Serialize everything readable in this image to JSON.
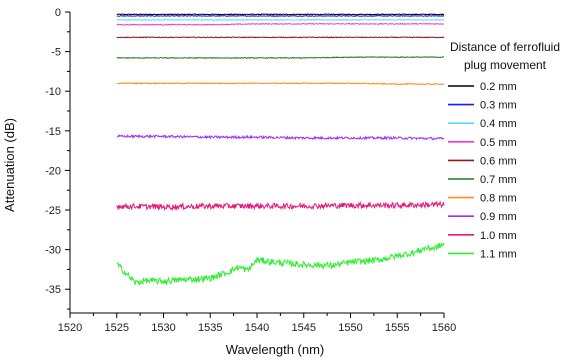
{
  "chart_data": {
    "type": "line",
    "xlabel": "Wavelength (nm)",
    "ylabel": "Attenuation (dB)",
    "xlim": [
      1520,
      1560
    ],
    "ylim": [
      -38,
      0
    ],
    "xticks": [
      "1520",
      "1525",
      "1530",
      "1535",
      "1540",
      "1545",
      "1550",
      "1555",
      "1560"
    ],
    "yticks": [
      "0",
      "-5",
      "-10",
      "-15",
      "-20",
      "-25",
      "-30",
      "-35"
    ],
    "legend": {
      "title_lines": [
        "Distance of ferrofluid",
        "plug movement"
      ],
      "placement": "right"
    },
    "grid": false,
    "series": [
      {
        "name": "0.2 mm",
        "color": "#000000",
        "noise": 0.05,
        "x": [
          1525,
          1530,
          1535,
          1540,
          1545,
          1550,
          1555,
          1560
        ],
        "y": [
          -0.3,
          -0.3,
          -0.3,
          -0.3,
          -0.3,
          -0.3,
          -0.3,
          -0.3
        ]
      },
      {
        "name": "0.3 mm",
        "color": "#1a1aff",
        "noise": 0.05,
        "x": [
          1525,
          1530,
          1535,
          1540,
          1545,
          1550,
          1555,
          1560
        ],
        "y": [
          -0.5,
          -0.5,
          -0.5,
          -0.5,
          -0.5,
          -0.5,
          -0.5,
          -0.5
        ]
      },
      {
        "name": "0.4 mm",
        "color": "#55dfff",
        "noise": 0.05,
        "x": [
          1525,
          1530,
          1535,
          1540,
          1545,
          1550,
          1555,
          1560
        ],
        "y": [
          -1.0,
          -1.0,
          -1.0,
          -1.0,
          -1.0,
          -1.0,
          -1.0,
          -1.0
        ]
      },
      {
        "name": "0.5 mm",
        "color": "#ff33cc",
        "noise": 0.05,
        "x": [
          1525,
          1530,
          1535,
          1540,
          1545,
          1550,
          1555,
          1560
        ],
        "y": [
          -1.6,
          -1.6,
          -1.6,
          -1.5,
          -1.5,
          -1.5,
          -1.5,
          -1.5
        ]
      },
      {
        "name": "0.6 mm",
        "color": "#8b1a1a",
        "noise": 0.05,
        "x": [
          1525,
          1530,
          1535,
          1540,
          1545,
          1550,
          1555,
          1560
        ],
        "y": [
          -3.2,
          -3.2,
          -3.2,
          -3.2,
          -3.2,
          -3.2,
          -3.2,
          -3.2
        ]
      },
      {
        "name": "0.7 mm",
        "color": "#1e7a1e",
        "noise": 0.05,
        "x": [
          1525,
          1530,
          1535,
          1540,
          1545,
          1550,
          1555,
          1560
        ],
        "y": [
          -5.8,
          -5.8,
          -5.8,
          -5.8,
          -5.8,
          -5.7,
          -5.7,
          -5.7
        ]
      },
      {
        "name": "0.8 mm",
        "color": "#ff8c1a",
        "noise": 0.06,
        "x": [
          1525,
          1530,
          1535,
          1540,
          1545,
          1550,
          1555,
          1560
        ],
        "y": [
          -9.0,
          -9.0,
          -9.0,
          -9.0,
          -9.0,
          -9.0,
          -9.1,
          -9.1
        ]
      },
      {
        "name": "0.9 mm",
        "color": "#9933ff",
        "noise": 0.15,
        "x": [
          1525,
          1530,
          1535,
          1540,
          1545,
          1550,
          1555,
          1560
        ],
        "y": [
          -15.7,
          -15.7,
          -15.8,
          -15.8,
          -15.9,
          -15.9,
          -15.9,
          -16.0
        ]
      },
      {
        "name": "1.0 mm",
        "color": "#e6197a",
        "noise": 0.35,
        "x": [
          1525,
          1530,
          1535,
          1540,
          1545,
          1550,
          1555,
          1560
        ],
        "y": [
          -24.5,
          -24.6,
          -24.5,
          -24.5,
          -24.5,
          -24.4,
          -24.4,
          -24.3
        ]
      },
      {
        "name": "1.1 mm",
        "color": "#33ee33",
        "noise": 0.4,
        "x": [
          1525,
          1526,
          1527,
          1528,
          1530,
          1532,
          1535,
          1537,
          1538,
          1539,
          1540,
          1542,
          1545,
          1548,
          1550,
          1553,
          1555,
          1557,
          1558,
          1559,
          1560
        ],
        "y": [
          -31.8,
          -33.0,
          -34.2,
          -33.9,
          -34.0,
          -33.8,
          -33.6,
          -32.8,
          -32.2,
          -32.6,
          -31.3,
          -31.6,
          -31.9,
          -32.0,
          -31.6,
          -31.3,
          -30.8,
          -30.3,
          -29.8,
          -29.8,
          -29.3
        ]
      }
    ]
  }
}
